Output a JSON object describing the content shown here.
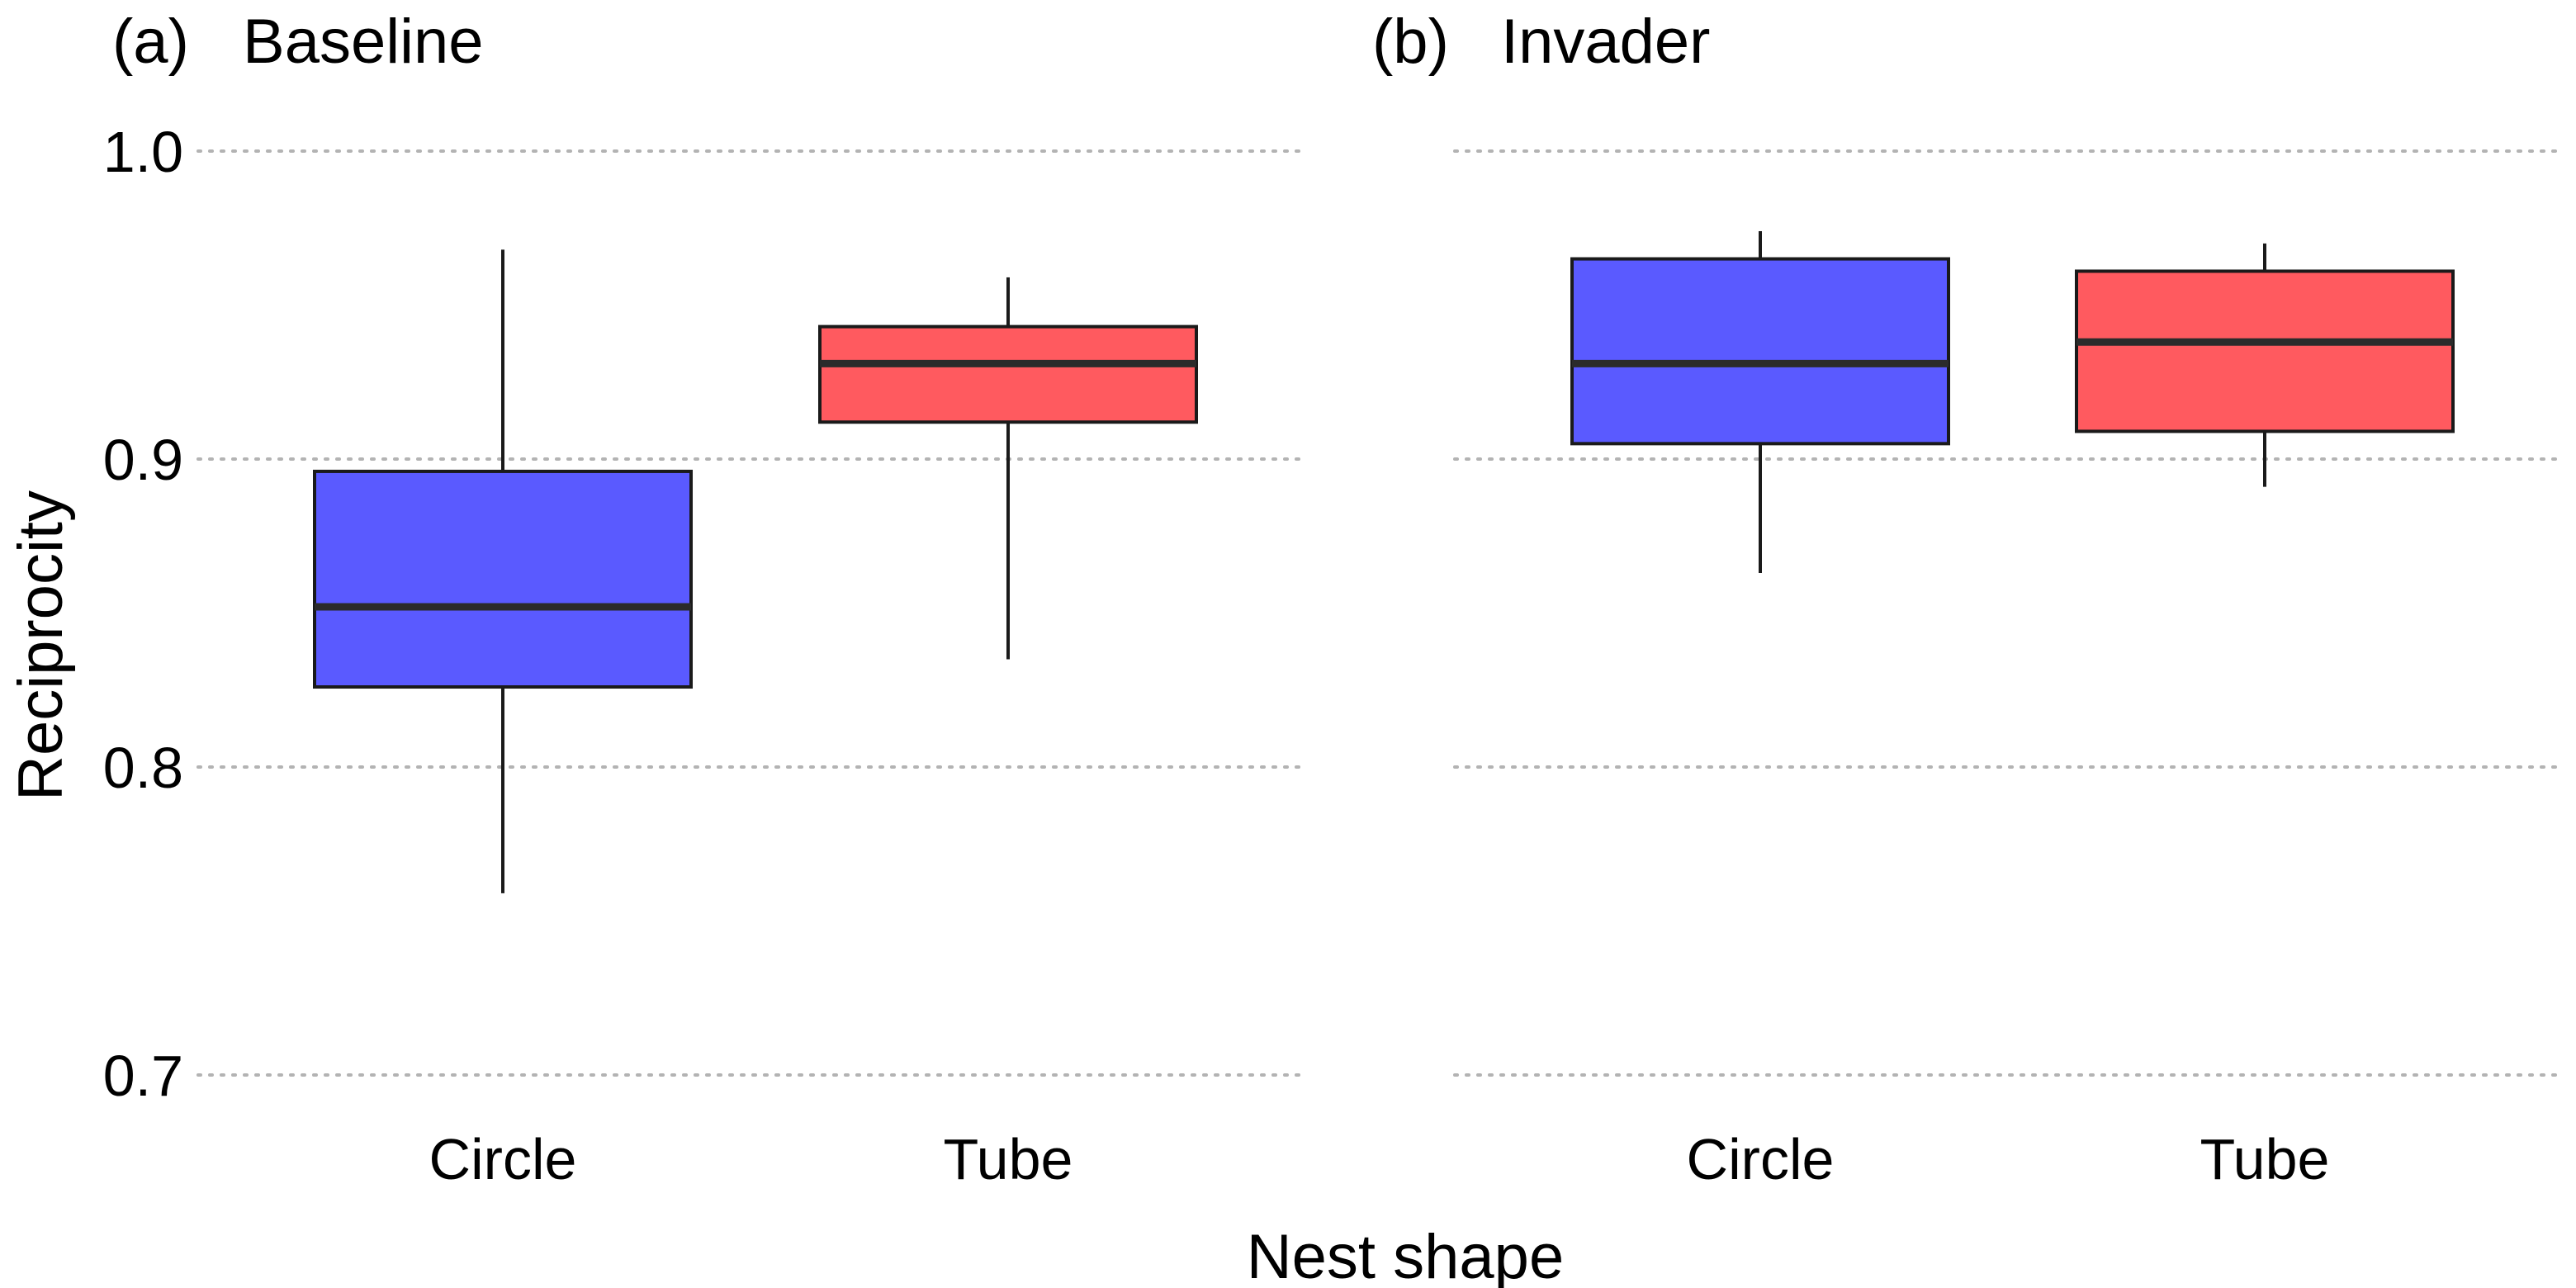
{
  "y_axis_label": "Reciprocity",
  "x_axis_label": "Nest shape",
  "chart_data": [
    {
      "type": "box",
      "panel_label": "(a)",
      "title": "Baseline",
      "xlabel": "Nest shape",
      "ylabel": "Reciprocity",
      "ylim": [
        0.7,
        1.0
      ],
      "yticks": [
        0.7,
        0.8,
        0.9,
        1.0
      ],
      "ytick_labels": [
        "0.7",
        "0.8",
        "0.9",
        "1.0"
      ],
      "grid": "horizontal dotted",
      "categories": [
        "Circle",
        "Tube"
      ],
      "boxes": [
        {
          "category": "Circle",
          "whisker_low": 0.759,
          "q1": 0.826,
          "median": 0.852,
          "q3": 0.896,
          "whisker_high": 0.968,
          "color": "#5A5AFF"
        },
        {
          "category": "Tube",
          "whisker_low": 0.835,
          "q1": 0.912,
          "median": 0.931,
          "q3": 0.943,
          "whisker_high": 0.959,
          "color": "#FF5A5F"
        }
      ]
    },
    {
      "type": "box",
      "panel_label": "(b)",
      "title": "Invader",
      "xlabel": "Nest shape",
      "ylabel": "Reciprocity",
      "ylim": [
        0.7,
        1.0
      ],
      "yticks": [
        0.7,
        0.8,
        0.9,
        1.0
      ],
      "ytick_labels": [
        "0.7",
        "0.8",
        "0.9",
        "1.0"
      ],
      "grid": "horizontal dotted",
      "categories": [
        "Circle",
        "Tube"
      ],
      "boxes": [
        {
          "category": "Circle",
          "whisker_low": 0.863,
          "q1": 0.905,
          "median": 0.931,
          "q3": 0.965,
          "whisker_high": 0.974,
          "color": "#5A5AFF"
        },
        {
          "category": "Tube",
          "whisker_low": 0.891,
          "q1": 0.909,
          "median": 0.938,
          "q3": 0.961,
          "whisker_high": 0.97,
          "color": "#FF5A5F"
        }
      ]
    }
  ]
}
